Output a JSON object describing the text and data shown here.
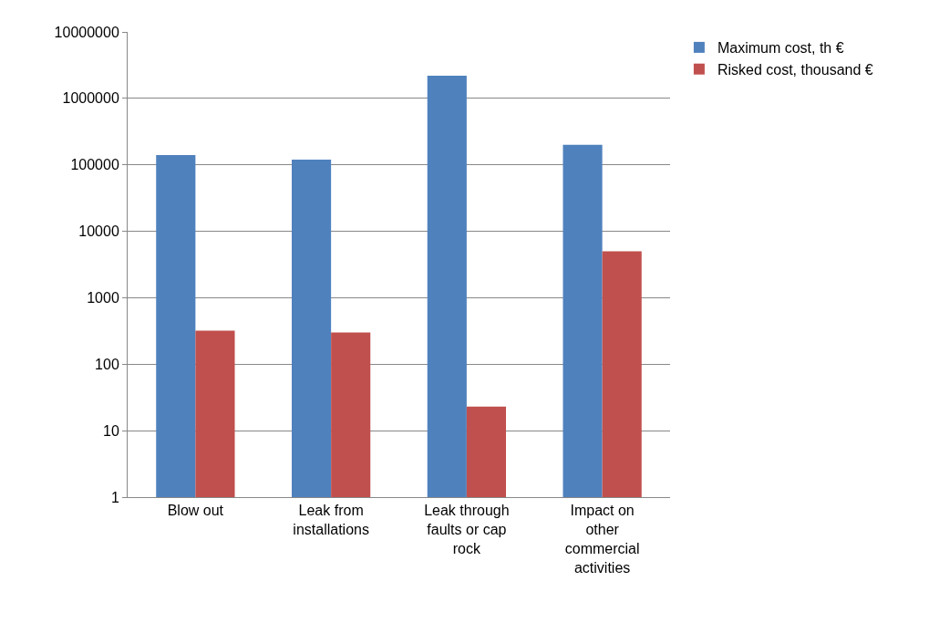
{
  "chart_data": {
    "type": "bar",
    "categories": [
      "Blow out",
      "Leak from installations",
      "Leak through faults or cap rock",
      "Impact on other commercial activities"
    ],
    "series": [
      {
        "name": "Maximum cost, th €",
        "color": "#4f81bd",
        "values": [
          140000,
          120000,
          2200000,
          200000
        ]
      },
      {
        "name": "Risked cost, thousand €",
        "color": "#c0504d",
        "values": [
          320,
          300,
          23,
          5000
        ]
      }
    ],
    "log": "y",
    "ylim": [
      1,
      10000000
    ],
    "yticks": [
      1,
      10,
      100,
      1000,
      10000,
      100000,
      1000000,
      10000000
    ],
    "grid": "y",
    "legend": "top right"
  }
}
